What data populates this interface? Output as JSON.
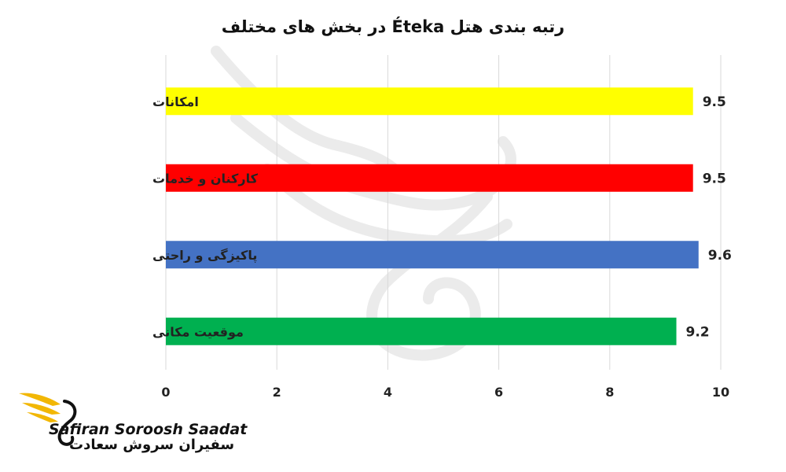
{
  "chart_data": {
    "type": "bar",
    "orientation": "horizontal",
    "title": "رتبه بندی هتل Éteka در بخش های مختلف",
    "categories": [
      "امکانات",
      "کارکنان و خدمات",
      "پاکیزگی و راحتی",
      "موقعیت مکانی"
    ],
    "values": [
      9.5,
      9.5,
      9.6,
      9.2
    ],
    "bar_colors": [
      "#ffff00",
      "#ff0000",
      "#4472c4",
      "#00b050"
    ],
    "xlim": [
      0,
      10
    ],
    "xticks": [
      0,
      2,
      4,
      6,
      8,
      10
    ],
    "xlabel": "",
    "ylabel": "",
    "grid": "vertical",
    "legend": "none",
    "data_labels": true
  },
  "logo": {
    "latin": "Safiran Soroosh Saadat",
    "persian": "سفیران سروش سعادت",
    "accent": "#f2b705"
  }
}
